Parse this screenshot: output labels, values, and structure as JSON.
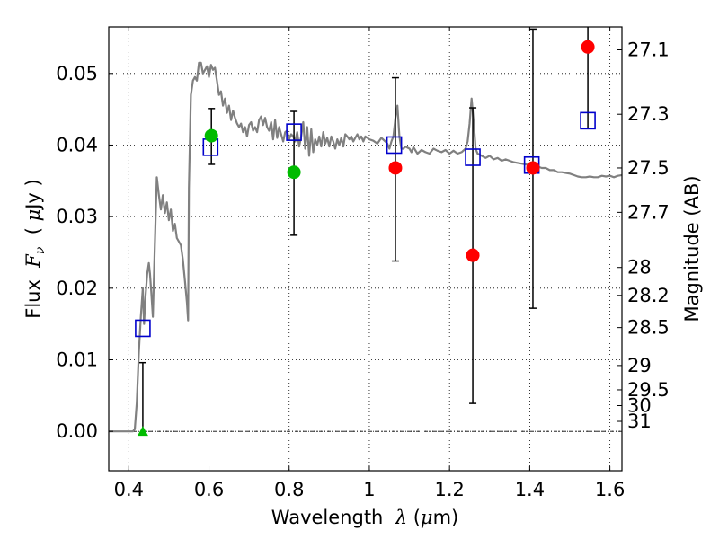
{
  "chart_data": {
    "type": "scatter",
    "xlabel": {
      "prefix": "Wavelength  ",
      "symbol": "λ",
      "suffix": " (",
      "unit_symbol": "μ",
      "unit": "m)"
    },
    "ylabel": {
      "prefix": "Flux  ",
      "symbol": "F",
      "subscript": "ν",
      "suffix": "  ( ",
      "unit_symbol": "μ",
      "unit": "Jy )"
    },
    "y2label": "Magnitude (AB)",
    "xlim": [
      0.35,
      1.63
    ],
    "ylim": [
      -0.0055,
      0.0565
    ],
    "grid": true,
    "colors": {
      "model": "#808080",
      "model_photometry": "#0000cc",
      "detection_green": "#00bb00",
      "detection_red": "#ff0000",
      "errorbar": "#000000"
    },
    "x_ticks": [
      {
        "value": 0.4,
        "label": "0.4"
      },
      {
        "value": 0.6,
        "label": "0.6"
      },
      {
        "value": 0.8,
        "label": "0.8"
      },
      {
        "value": 1.0,
        "label": "1"
      },
      {
        "value": 1.2,
        "label": "1.2"
      },
      {
        "value": 1.4,
        "label": "1.4"
      },
      {
        "value": 1.6,
        "label": "1.6"
      }
    ],
    "y_ticks": [
      {
        "value": 0.0,
        "label": "0.00"
      },
      {
        "value": 0.01,
        "label": "0.01"
      },
      {
        "value": 0.02,
        "label": "0.02"
      },
      {
        "value": 0.03,
        "label": "0.03"
      },
      {
        "value": 0.04,
        "label": "0.04"
      },
      {
        "value": 0.05,
        "label": "0.05"
      }
    ],
    "magnitude_ticks": [
      {
        "flux": 0.0533,
        "label": "27.1"
      },
      {
        "flux": 0.0443,
        "label": "27.3"
      },
      {
        "flux": 0.0368,
        "label": "27.5"
      },
      {
        "flux": 0.0306,
        "label": "27.7"
      },
      {
        "flux": 0.0229,
        "label": "28"
      },
      {
        "flux": 0.019,
        "label": "28.2"
      },
      {
        "flux": 0.0145,
        "label": "28.5"
      },
      {
        "flux": 0.0092,
        "label": "29"
      },
      {
        "flux": 0.0058,
        "label": "29.5"
      },
      {
        "flux": 0.0036,
        "label": "30"
      },
      {
        "flux": 0.0014,
        "label": "31"
      }
    ],
    "series": [
      {
        "type": "line",
        "points": [
          [
            0.35,
            0.0
          ],
          [
            0.4,
            0.0
          ],
          [
            0.41,
            0.0
          ],
          [
            0.415,
            0.0003
          ],
          [
            0.42,
            0.004
          ],
          [
            0.425,
            0.011
          ],
          [
            0.43,
            0.016
          ],
          [
            0.435,
            0.02
          ],
          [
            0.438,
            0.015
          ],
          [
            0.442,
            0.019
          ],
          [
            0.446,
            0.022
          ],
          [
            0.45,
            0.0235
          ],
          [
            0.453,
            0.022
          ],
          [
            0.456,
            0.0195
          ],
          [
            0.46,
            0.016
          ],
          [
            0.465,
            0.026
          ],
          [
            0.47,
            0.0355
          ],
          [
            0.475,
            0.033
          ],
          [
            0.48,
            0.031
          ],
          [
            0.485,
            0.033
          ],
          [
            0.49,
            0.0305
          ],
          [
            0.495,
            0.032
          ],
          [
            0.5,
            0.0295
          ],
          [
            0.505,
            0.031
          ],
          [
            0.51,
            0.028
          ],
          [
            0.515,
            0.029
          ],
          [
            0.52,
            0.027
          ],
          [
            0.525,
            0.0265
          ],
          [
            0.53,
            0.026
          ],
          [
            0.535,
            0.024
          ],
          [
            0.54,
            0.021
          ],
          [
            0.545,
            0.018
          ],
          [
            0.548,
            0.0155
          ],
          [
            0.55,
            0.034
          ],
          [
            0.555,
            0.047
          ],
          [
            0.56,
            0.049
          ],
          [
            0.565,
            0.0495
          ],
          [
            0.57,
            0.049
          ],
          [
            0.575,
            0.0515
          ],
          [
            0.58,
            0.0515
          ],
          [
            0.585,
            0.05
          ],
          [
            0.59,
            0.0505
          ],
          [
            0.595,
            0.051
          ],
          [
            0.6,
            0.0495
          ],
          [
            0.605,
            0.0512
          ],
          [
            0.61,
            0.0505
          ],
          [
            0.615,
            0.0508
          ],
          [
            0.62,
            0.049
          ],
          [
            0.625,
            0.047
          ],
          [
            0.63,
            0.0475
          ],
          [
            0.635,
            0.0455
          ],
          [
            0.64,
            0.0465
          ],
          [
            0.645,
            0.0445
          ],
          [
            0.65,
            0.0455
          ],
          [
            0.655,
            0.0435
          ],
          [
            0.66,
            0.0448
          ],
          [
            0.665,
            0.0438
          ],
          [
            0.67,
            0.043
          ],
          [
            0.675,
            0.0425
          ],
          [
            0.68,
            0.043
          ],
          [
            0.685,
            0.0418
          ],
          [
            0.69,
            0.0425
          ],
          [
            0.695,
            0.0412
          ],
          [
            0.7,
            0.0428
          ],
          [
            0.705,
            0.0432
          ],
          [
            0.71,
            0.042
          ],
          [
            0.715,
            0.0425
          ],
          [
            0.72,
            0.0418
          ],
          [
            0.725,
            0.0435
          ],
          [
            0.73,
            0.044
          ],
          [
            0.735,
            0.0428
          ],
          [
            0.74,
            0.0438
          ],
          [
            0.745,
            0.0425
          ],
          [
            0.75,
            0.042
          ],
          [
            0.755,
            0.0432
          ],
          [
            0.76,
            0.0408
          ],
          [
            0.765,
            0.0435
          ],
          [
            0.77,
            0.041
          ],
          [
            0.775,
            0.0425
          ],
          [
            0.78,
            0.0415
          ],
          [
            0.785,
            0.0405
          ],
          [
            0.79,
            0.0418
          ],
          [
            0.795,
            0.042
          ],
          [
            0.8,
            0.0408
          ],
          [
            0.805,
            0.0415
          ],
          [
            0.81,
            0.0412
          ],
          [
            0.815,
            0.0405
          ],
          [
            0.82,
            0.0418
          ],
          [
            0.825,
            0.0398
          ],
          [
            0.83,
            0.0412
          ],
          [
            0.835,
            0.0432
          ],
          [
            0.84,
            0.0395
          ],
          [
            0.845,
            0.0425
          ],
          [
            0.85,
            0.0385
          ],
          [
            0.855,
            0.0422
          ],
          [
            0.86,
            0.039
          ],
          [
            0.865,
            0.0408
          ],
          [
            0.87,
            0.04
          ],
          [
            0.875,
            0.0412
          ],
          [
            0.88,
            0.0398
          ],
          [
            0.885,
            0.0418
          ],
          [
            0.89,
            0.0402
          ],
          [
            0.895,
            0.041
          ],
          [
            0.9,
            0.0398
          ],
          [
            0.905,
            0.0412
          ],
          [
            0.91,
            0.0405
          ],
          [
            0.915,
            0.0395
          ],
          [
            0.92,
            0.0408
          ],
          [
            0.925,
            0.04
          ],
          [
            0.93,
            0.041
          ],
          [
            0.935,
            0.0398
          ],
          [
            0.94,
            0.0415
          ],
          [
            0.945,
            0.0412
          ],
          [
            0.95,
            0.0408
          ],
          [
            0.955,
            0.0412
          ],
          [
            0.96,
            0.0405
          ],
          [
            0.965,
            0.041
          ],
          [
            0.97,
            0.0415
          ],
          [
            0.975,
            0.0408
          ],
          [
            0.98,
            0.0412
          ],
          [
            0.985,
            0.0405
          ],
          [
            0.99,
            0.0412
          ],
          [
            1.0,
            0.0408
          ],
          [
            1.01,
            0.0406
          ],
          [
            1.02,
            0.0402
          ],
          [
            1.03,
            0.041
          ],
          [
            1.04,
            0.0405
          ],
          [
            1.045,
            0.0402
          ],
          [
            1.05,
            0.0395
          ],
          [
            1.055,
            0.0405
          ],
          [
            1.06,
            0.0412
          ],
          [
            1.065,
            0.0438
          ],
          [
            1.07,
            0.0455
          ],
          [
            1.075,
            0.0412
          ],
          [
            1.08,
            0.0395
          ],
          [
            1.085,
            0.0395
          ],
          [
            1.09,
            0.0398
          ],
          [
            1.1,
            0.0395
          ],
          [
            1.105,
            0.039
          ],
          [
            1.11,
            0.0397
          ],
          [
            1.12,
            0.0388
          ],
          [
            1.13,
            0.0393
          ],
          [
            1.14,
            0.039
          ],
          [
            1.15,
            0.0388
          ],
          [
            1.16,
            0.0395
          ],
          [
            1.17,
            0.0392
          ],
          [
            1.18,
            0.039
          ],
          [
            1.19,
            0.0393
          ],
          [
            1.2,
            0.0388
          ],
          [
            1.21,
            0.0392
          ],
          [
            1.22,
            0.0388
          ],
          [
            1.23,
            0.039
          ],
          [
            1.24,
            0.0395
          ],
          [
            1.245,
            0.0405
          ],
          [
            1.25,
            0.043
          ],
          [
            1.255,
            0.0465
          ],
          [
            1.26,
            0.0435
          ],
          [
            1.265,
            0.0395
          ],
          [
            1.27,
            0.0388
          ],
          [
            1.28,
            0.0385
          ],
          [
            1.29,
            0.0382
          ],
          [
            1.3,
            0.0385
          ],
          [
            1.31,
            0.038
          ],
          [
            1.32,
            0.0382
          ],
          [
            1.33,
            0.0378
          ],
          [
            1.34,
            0.038
          ],
          [
            1.35,
            0.0378
          ],
          [
            1.36,
            0.0376
          ],
          [
            1.37,
            0.0375
          ],
          [
            1.38,
            0.0374
          ],
          [
            1.39,
            0.0373
          ],
          [
            1.4,
            0.0372
          ],
          [
            1.41,
            0.0372
          ],
          [
            1.42,
            0.037
          ],
          [
            1.43,
            0.0368
          ],
          [
            1.44,
            0.0368
          ],
          [
            1.45,
            0.0365
          ],
          [
            1.46,
            0.0365
          ],
          [
            1.47,
            0.0362
          ],
          [
            1.48,
            0.0362
          ],
          [
            1.49,
            0.0361
          ],
          [
            1.5,
            0.036
          ],
          [
            1.51,
            0.0358
          ],
          [
            1.52,
            0.0356
          ],
          [
            1.53,
            0.0355
          ],
          [
            1.54,
            0.0355
          ],
          [
            1.55,
            0.0356
          ],
          [
            1.56,
            0.0355
          ],
          [
            1.57,
            0.0355
          ],
          [
            1.58,
            0.0357
          ],
          [
            1.59,
            0.0356
          ],
          [
            1.6,
            0.0357
          ],
          [
            1.61,
            0.0355
          ],
          [
            1.62,
            0.0357
          ],
          [
            1.63,
            0.0358
          ]
        ]
      },
      {
        "type": "scatter",
        "marker": "square",
        "points": [
          [
            0.435,
            0.0144
          ],
          [
            0.604,
            0.0397
          ],
          [
            0.812,
            0.0418
          ],
          [
            1.062,
            0.04
          ],
          [
            1.258,
            0.0383
          ],
          [
            1.405,
            0.0372
          ],
          [
            1.545,
            0.0434
          ]
        ]
      },
      {
        "type": "scatter",
        "marker": "circle",
        "points": [
          {
            "x": 0.606,
            "y": 0.0413,
            "yerr_low": 0.0373,
            "yerr_high": 0.0451,
            "color": "detection_green"
          },
          {
            "x": 0.812,
            "y": 0.0362,
            "yerr_low": 0.0274,
            "yerr_high": 0.0447,
            "color": "detection_green"
          },
          {
            "x": 1.065,
            "y": 0.0368,
            "yerr_low": 0.0238,
            "yerr_high": 0.0494,
            "color": "detection_red"
          },
          {
            "x": 1.258,
            "y": 0.0246,
            "yerr_low": 0.0039,
            "yerr_high": 0.0452,
            "color": "detection_red"
          },
          {
            "x": 1.408,
            "y": 0.0368,
            "yerr_low": 0.0172,
            "yerr_high": 0.0562,
            "color": "detection_red"
          },
          {
            "x": 1.545,
            "y": 0.0537,
            "yerr_low": 0.0423,
            "yerr_high": 0.0565,
            "color": "detection_red"
          }
        ]
      },
      {
        "type": "upper_limit",
        "marker": "triangle",
        "points": [
          {
            "x": 0.435,
            "y": 0.0,
            "yerr_high": 0.0096,
            "color": "detection_green"
          }
        ]
      }
    ]
  }
}
